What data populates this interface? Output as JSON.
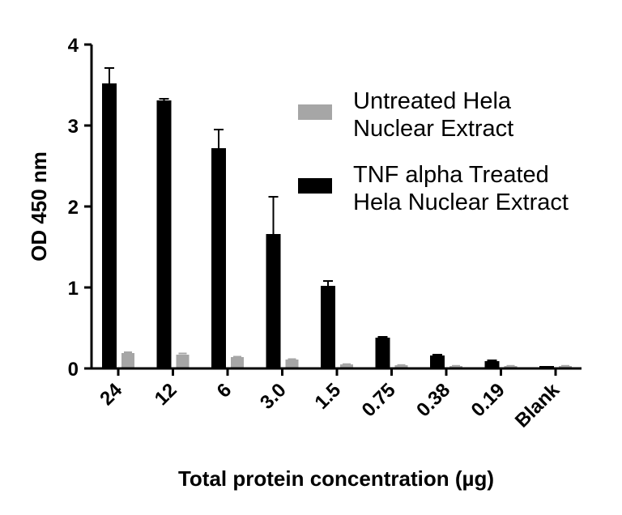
{
  "chart_data": {
    "type": "bar",
    "title": "",
    "xlabel": "Total protein concentration (µg)",
    "ylabel": "OD 450 nm",
    "categories": [
      "24",
      "12",
      "6",
      "3.0",
      "1.5",
      "0.75",
      "0.38",
      "0.19",
      "Blank"
    ],
    "ylim": [
      0,
      4
    ],
    "yticks": [
      "0",
      "1",
      "2",
      "3",
      "4"
    ],
    "grid": false,
    "legend_position": "top-right",
    "series": [
      {
        "name": "TNF alpha Treated Hela Nuclear Extract",
        "legend_lines": [
          "TNF alpha Treated",
          "Hela Nuclear Extract"
        ],
        "color": "#000000",
        "values": [
          3.52,
          3.31,
          2.72,
          1.66,
          1.02,
          0.38,
          0.16,
          0.09,
          0.03
        ],
        "errors": [
          0.19,
          0.02,
          0.23,
          0.46,
          0.06,
          0.01,
          0.01,
          0.01,
          0.0
        ]
      },
      {
        "name": "Untreated Hela Nuclear Extract",
        "legend_lines": [
          "Untreated Hela",
          "Nuclear Extract"
        ],
        "color": "#a6a6a6",
        "values": [
          0.19,
          0.17,
          0.14,
          0.11,
          0.05,
          0.04,
          0.03,
          0.03,
          0.03
        ],
        "errors": [
          0.01,
          0.015,
          0.005,
          0.005,
          0.003,
          0.002,
          0.002,
          0.002,
          0.002
        ]
      }
    ]
  }
}
